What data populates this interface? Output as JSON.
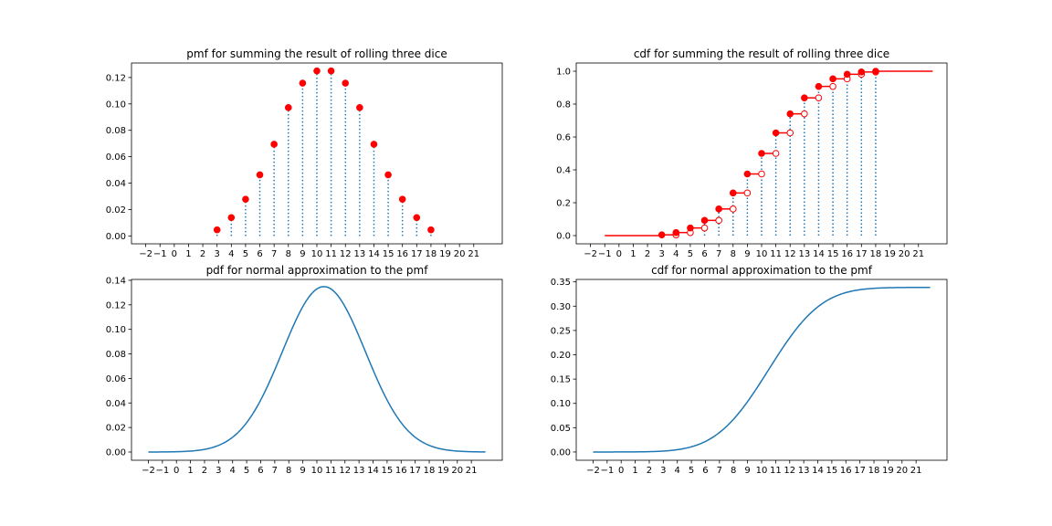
{
  "chart_data": [
    {
      "type": "stem",
      "title": "pmf for summing the result of rolling three dice",
      "xlabel": "",
      "ylabel": "",
      "xlim": [
        -3,
        23
      ],
      "ylim": [
        -0.006,
        0.131
      ],
      "xticks": [
        -2,
        -1,
        0,
        1,
        2,
        3,
        4,
        5,
        6,
        7,
        8,
        9,
        10,
        11,
        12,
        13,
        14,
        15,
        16,
        17,
        18,
        19,
        20,
        21
      ],
      "xtick_labels": [
        "−2",
        "−1",
        "0",
        "1",
        "2",
        "3",
        "4",
        "5",
        "6",
        "7",
        "8",
        "9",
        "10",
        "11",
        "12",
        "13",
        "14",
        "15",
        "16",
        "17",
        "18",
        "19",
        "20",
        "21"
      ],
      "yticks": [
        0.0,
        0.02,
        0.04,
        0.06,
        0.08,
        0.1,
        0.12
      ],
      "ytick_labels": [
        "0.00",
        "0.02",
        "0.04",
        "0.06",
        "0.08",
        "0.10",
        "0.12"
      ],
      "x": [
        3,
        4,
        5,
        6,
        7,
        8,
        9,
        10,
        11,
        12,
        13,
        14,
        15,
        16,
        17,
        18
      ],
      "y": [
        0.00463,
        0.01389,
        0.02778,
        0.0463,
        0.06944,
        0.09722,
        0.11574,
        0.125,
        0.125,
        0.11574,
        0.09722,
        0.06944,
        0.0463,
        0.02778,
        0.01389,
        0.00463
      ],
      "stem_color": "#1f77b4",
      "marker_color": "#ff0000",
      "grid": false
    },
    {
      "type": "step",
      "title": "cdf for summing the result of rolling three dice",
      "xlabel": "",
      "ylabel": "",
      "xlim": [
        -3,
        23
      ],
      "ylim": [
        -0.05,
        1.05
      ],
      "xticks": [
        -2,
        -1,
        0,
        1,
        2,
        3,
        4,
        5,
        6,
        7,
        8,
        9,
        10,
        11,
        12,
        13,
        14,
        15,
        16,
        17,
        18,
        19,
        20,
        21
      ],
      "xtick_labels": [
        "−2",
        "−1",
        "0",
        "1",
        "2",
        "3",
        "4",
        "5",
        "6",
        "7",
        "8",
        "9",
        "10",
        "11",
        "12",
        "13",
        "14",
        "15",
        "16",
        "17",
        "18",
        "19",
        "20",
        "21"
      ],
      "yticks": [
        0.0,
        0.2,
        0.4,
        0.6,
        0.8,
        1.0
      ],
      "ytick_labels": [
        "0.0",
        "0.2",
        "0.4",
        "0.6",
        "0.8",
        "1.0"
      ],
      "x": [
        3,
        4,
        5,
        6,
        7,
        8,
        9,
        10,
        11,
        12,
        13,
        14,
        15,
        16,
        17,
        18
      ],
      "y": [
        0.00463,
        0.01852,
        0.0463,
        0.09259,
        0.16204,
        0.25926,
        0.375,
        0.5,
        0.625,
        0.74074,
        0.83796,
        0.90741,
        0.9537,
        0.98148,
        0.99537,
        1.0
      ],
      "left_segment": {
        "x0": -1,
        "x1": 3,
        "y": 0.0
      },
      "right_segment": {
        "x0": 18,
        "x1": 22,
        "y": 1.0
      },
      "line_color": "#ff0000",
      "stem_color": "#1f77b4",
      "grid": false
    },
    {
      "type": "line",
      "title": "pdf for normal approximation to the pmf",
      "xlabel": "",
      "ylabel": "",
      "xlim": [
        -3.2,
        23.2
      ],
      "ylim": [
        -0.0067,
        0.1407
      ],
      "xticks": [
        -2,
        -1,
        0,
        1,
        2,
        3,
        4,
        5,
        6,
        7,
        8,
        9,
        10,
        11,
        12,
        13,
        14,
        15,
        16,
        17,
        18,
        19,
        20,
        21
      ],
      "xtick_labels": [
        "−2",
        "−1",
        "0",
        "1",
        "2",
        "3",
        "4",
        "5",
        "6",
        "7",
        "8",
        "9",
        "10",
        "11",
        "12",
        "13",
        "14",
        "15",
        "16",
        "17",
        "18",
        "19",
        "20",
        "21"
      ],
      "yticks": [
        0.0,
        0.02,
        0.04,
        0.06,
        0.08,
        0.1,
        0.12,
        0.14
      ],
      "ytick_labels": [
        "0.00",
        "0.02",
        "0.04",
        "0.06",
        "0.08",
        "0.10",
        "0.12",
        "0.14"
      ],
      "x_range": [
        -2,
        22
      ],
      "mean": 10.5,
      "std": 2.958,
      "line_color": "#1f77b4",
      "grid": false
    },
    {
      "type": "line",
      "title": "cdf for normal approximation to the pmf",
      "xlabel": "",
      "ylabel": "",
      "xlim": [
        -3.2,
        23.2
      ],
      "ylim": [
        -0.017,
        0.355
      ],
      "xticks": [
        -2,
        -1,
        0,
        1,
        2,
        3,
        4,
        5,
        6,
        7,
        8,
        9,
        10,
        11,
        12,
        13,
        14,
        15,
        16,
        17,
        18,
        19,
        20,
        21
      ],
      "xtick_labels": [
        "−2",
        "−1",
        "0",
        "1",
        "2",
        "3",
        "4",
        "5",
        "6",
        "7",
        "8",
        "9",
        "10",
        "11",
        "12",
        "13",
        "14",
        "15",
        "16",
        "17",
        "18",
        "19",
        "20",
        "21"
      ],
      "yticks": [
        0.0,
        0.05,
        0.1,
        0.15,
        0.2,
        0.25,
        0.3,
        0.35
      ],
      "ytick_labels": [
        "0.00",
        "0.05",
        "0.10",
        "0.15",
        "0.20",
        "0.25",
        "0.30",
        "0.35"
      ],
      "x_range": [
        -2,
        22
      ],
      "mean": 10.5,
      "std": 2.958,
      "asymptote": 0.3386,
      "line_color": "#1f77b4",
      "grid": false
    }
  ]
}
